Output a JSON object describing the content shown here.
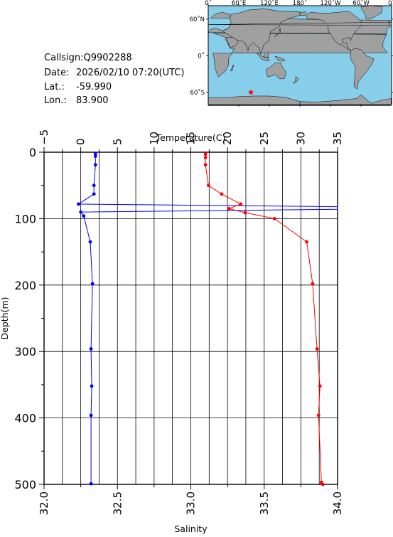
{
  "info": {
    "callsign_label": "Callsign:",
    "callsign": "Q9902288",
    "date_label": "Date:",
    "date": "2026/02/10 07:20(UTC)",
    "lat_label": "Lat.:",
    "lat": "-59.990",
    "lon_label": "Lon.:",
    "lon": "83.900"
  },
  "map": {
    "top_ticks": [
      "0˚",
      "60˚E",
      "120˚E",
      "180˚",
      "120˚W",
      "60˚W",
      "0˚"
    ],
    "lat_ticks": [
      "60˚N",
      "0˚",
      "60˚S"
    ],
    "marker_lon": 83.9,
    "marker_lat": -59.99,
    "ocean_color": "#87ceeb",
    "land_color": "#a0a0a0",
    "marker_color": "#ff0000"
  },
  "chart_data": {
    "type": "line",
    "xlabel_top": "Temperature(C)",
    "xlabel_bottom": "Salinity",
    "ylabel": "Depth(m)",
    "temperature_range": [
      -5,
      35
    ],
    "temperature_ticks": [
      "−5",
      "0",
      "5",
      "10",
      "15",
      "20",
      "25",
      "30",
      "35"
    ],
    "salinity_range": [
      32.0,
      34.0
    ],
    "salinity_ticks": [
      "32.0",
      "32.5",
      "33.0",
      "33.5",
      "34.0"
    ],
    "depth_range": [
      0,
      500
    ],
    "depth_ticks": [
      "0",
      "100",
      "200",
      "300",
      "400",
      "500"
    ],
    "grid": true,
    "series": [
      {
        "color": "#0000ff",
        "axis": "temperature",
        "points": [
          [
            2.0,
            2
          ],
          [
            2.0,
            6
          ],
          [
            2.0,
            19
          ],
          [
            1.8,
            50
          ],
          [
            1.8,
            63
          ],
          [
            -0.3,
            78
          ],
          [
            35.0,
            82
          ],
          [
            35.0,
            86
          ],
          [
            0.0,
            90
          ],
          [
            0.4,
            96
          ],
          [
            1.3,
            135
          ],
          [
            1.6,
            198
          ],
          [
            1.4,
            296
          ],
          [
            1.5,
            352
          ],
          [
            1.4,
            396
          ],
          [
            1.4,
            499
          ]
        ]
      },
      {
        "color": "#ff0000",
        "axis": "salinity",
        "points": [
          [
            33.1,
            3
          ],
          [
            33.1,
            8
          ],
          [
            33.1,
            19
          ],
          [
            33.12,
            50
          ],
          [
            33.21,
            63
          ],
          [
            33.34,
            78
          ],
          [
            33.26,
            85
          ],
          [
            33.37,
            91
          ],
          [
            33.57,
            100
          ],
          [
            33.79,
            135
          ],
          [
            33.83,
            198
          ],
          [
            33.86,
            296
          ],
          [
            33.88,
            352
          ],
          [
            33.87,
            396
          ],
          [
            33.89,
            497
          ],
          [
            33.9,
            500
          ]
        ]
      }
    ]
  }
}
